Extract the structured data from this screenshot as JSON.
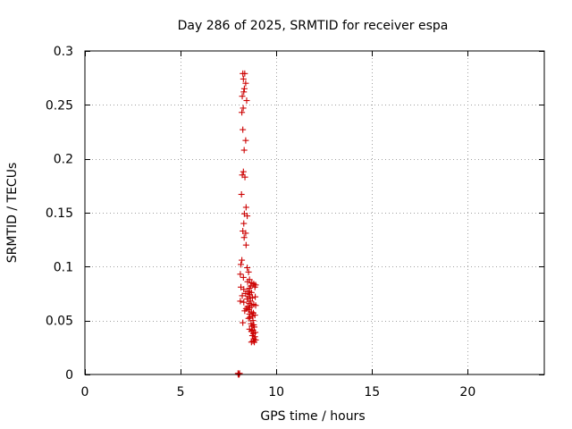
{
  "chart_data": {
    "type": "scatter",
    "title": "Day 286 of 2025, SRMTID for receiver espa",
    "xlabel": "GPS time / hours",
    "ylabel": "SRMTID / TECUs",
    "xlim": [
      0,
      24
    ],
    "ylim": [
      0,
      0.3
    ],
    "grid": true,
    "series_color": "#cc0000",
    "marker": "+",
    "x_ticks": [
      0,
      5,
      10,
      15,
      20
    ],
    "x_tick_labels": [
      "0",
      "5",
      "10",
      "15",
      "20"
    ],
    "y_ticks": [
      0,
      0.05,
      0.1,
      0.15,
      0.2,
      0.25,
      0.3
    ],
    "y_tick_labels": [
      "0",
      "0.05",
      "0.1",
      "0.15",
      "0.2",
      "0.25",
      "0.3"
    ],
    "points": [
      [
        8.0,
        0.001
      ],
      [
        8.02,
        0.0
      ],
      [
        8.05,
        0.0
      ],
      [
        8.08,
        0.001
      ],
      [
        8.25,
        0.279
      ],
      [
        8.35,
        0.279
      ],
      [
        8.28,
        0.274
      ],
      [
        8.4,
        0.27
      ],
      [
        8.33,
        0.265
      ],
      [
        8.3,
        0.262
      ],
      [
        8.22,
        0.258
      ],
      [
        8.45,
        0.254
      ],
      [
        8.27,
        0.247
      ],
      [
        8.2,
        0.243
      ],
      [
        8.25,
        0.227
      ],
      [
        8.4,
        0.217
      ],
      [
        8.32,
        0.208
      ],
      [
        8.28,
        0.188
      ],
      [
        8.22,
        0.185
      ],
      [
        8.36,
        0.183
      ],
      [
        8.18,
        0.167
      ],
      [
        8.42,
        0.155
      ],
      [
        8.33,
        0.149
      ],
      [
        8.48,
        0.147
      ],
      [
        8.3,
        0.14
      ],
      [
        8.25,
        0.133
      ],
      [
        8.4,
        0.131
      ],
      [
        8.32,
        0.127
      ],
      [
        8.42,
        0.12
      ],
      [
        8.2,
        0.106
      ],
      [
        8.15,
        0.102
      ],
      [
        8.48,
        0.099
      ],
      [
        8.55,
        0.095
      ],
      [
        8.12,
        0.093
      ],
      [
        8.28,
        0.09
      ],
      [
        8.6,
        0.088
      ],
      [
        8.5,
        0.086
      ],
      [
        8.72,
        0.085
      ],
      [
        8.82,
        0.084
      ],
      [
        8.92,
        0.083
      ],
      [
        8.65,
        0.082
      ],
      [
        8.15,
        0.081
      ],
      [
        8.88,
        0.081
      ],
      [
        8.6,
        0.08
      ],
      [
        8.3,
        0.079
      ],
      [
        8.58,
        0.077
      ],
      [
        8.5,
        0.077
      ],
      [
        8.7,
        0.076
      ],
      [
        8.4,
        0.075
      ],
      [
        8.62,
        0.074
      ],
      [
        8.22,
        0.073
      ],
      [
        8.55,
        0.072
      ],
      [
        8.9,
        0.072
      ],
      [
        8.75,
        0.071
      ],
      [
        8.48,
        0.07
      ],
      [
        8.12,
        0.068
      ],
      [
        8.65,
        0.068
      ],
      [
        8.3,
        0.067
      ],
      [
        8.58,
        0.066
      ],
      [
        8.82,
        0.065
      ],
      [
        8.72,
        0.064
      ],
      [
        8.92,
        0.064
      ],
      [
        8.5,
        0.063
      ],
      [
        8.62,
        0.062
      ],
      [
        8.42,
        0.061
      ],
      [
        8.55,
        0.06
      ],
      [
        8.35,
        0.059
      ],
      [
        8.7,
        0.058
      ],
      [
        8.8,
        0.057
      ],
      [
        8.6,
        0.056
      ],
      [
        8.88,
        0.055
      ],
      [
        8.75,
        0.054
      ],
      [
        8.62,
        0.053
      ],
      [
        8.55,
        0.052
      ],
      [
        8.78,
        0.05
      ],
      [
        8.25,
        0.048
      ],
      [
        8.68,
        0.047
      ],
      [
        8.82,
        0.046
      ],
      [
        8.72,
        0.045
      ],
      [
        8.85,
        0.044
      ],
      [
        8.6,
        0.042
      ],
      [
        8.78,
        0.041
      ],
      [
        8.7,
        0.04
      ],
      [
        8.9,
        0.039
      ],
      [
        8.8,
        0.038
      ],
      [
        8.75,
        0.036
      ],
      [
        8.88,
        0.035
      ],
      [
        8.82,
        0.033
      ],
      [
        8.92,
        0.032
      ],
      [
        8.78,
        0.031
      ],
      [
        8.85,
        0.03
      ],
      [
        8.7,
        0.03
      ]
    ]
  }
}
